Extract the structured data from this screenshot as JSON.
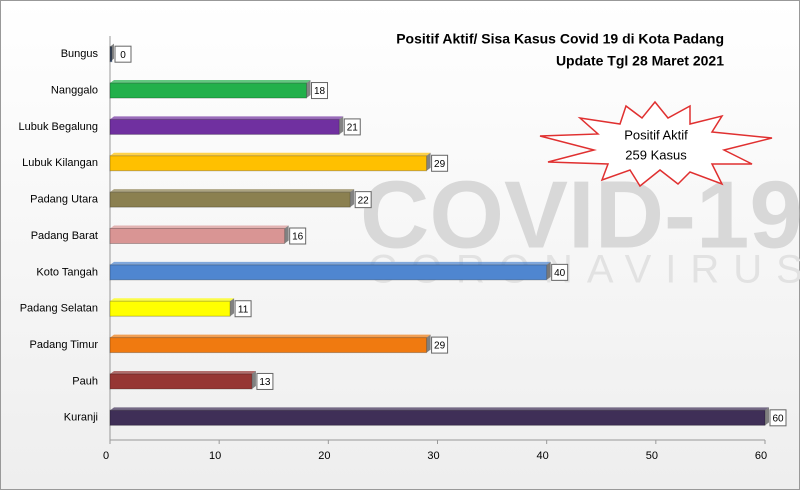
{
  "chart_data": {
    "type": "bar",
    "orientation": "horizontal",
    "title": "Positif Aktif/ Sisa Kasus Covid 19 di Kota Padang",
    "subtitle": "Update Tgl 28 Maret 2021",
    "annotation": [
      "Positif Aktif",
      "259 Kasus"
    ],
    "watermark": [
      "COVID-19",
      "CORONAVIRUS"
    ],
    "categories": [
      "Bungus",
      "Nanggalo",
      "Lubuk Begalung",
      "Lubuk Kilangan",
      "Padang Utara",
      "Padang Barat",
      "Koto Tangah",
      "Padang Selatan",
      "Padang Timur",
      "Pauh",
      "Kuranji"
    ],
    "values": [
      0,
      18,
      21,
      29,
      22,
      16,
      40,
      11,
      29,
      13,
      60
    ],
    "colors": [
      "#3a5a8c",
      "#22b04b",
      "#7030a0",
      "#ffc000",
      "#8b8050",
      "#d99594",
      "#4f86d0",
      "#ffff00",
      "#f07a10",
      "#963634",
      "#3f2f57"
    ],
    "xlim": [
      0,
      60
    ],
    "xticks": [
      0,
      10,
      20,
      30,
      40,
      50,
      60
    ]
  }
}
